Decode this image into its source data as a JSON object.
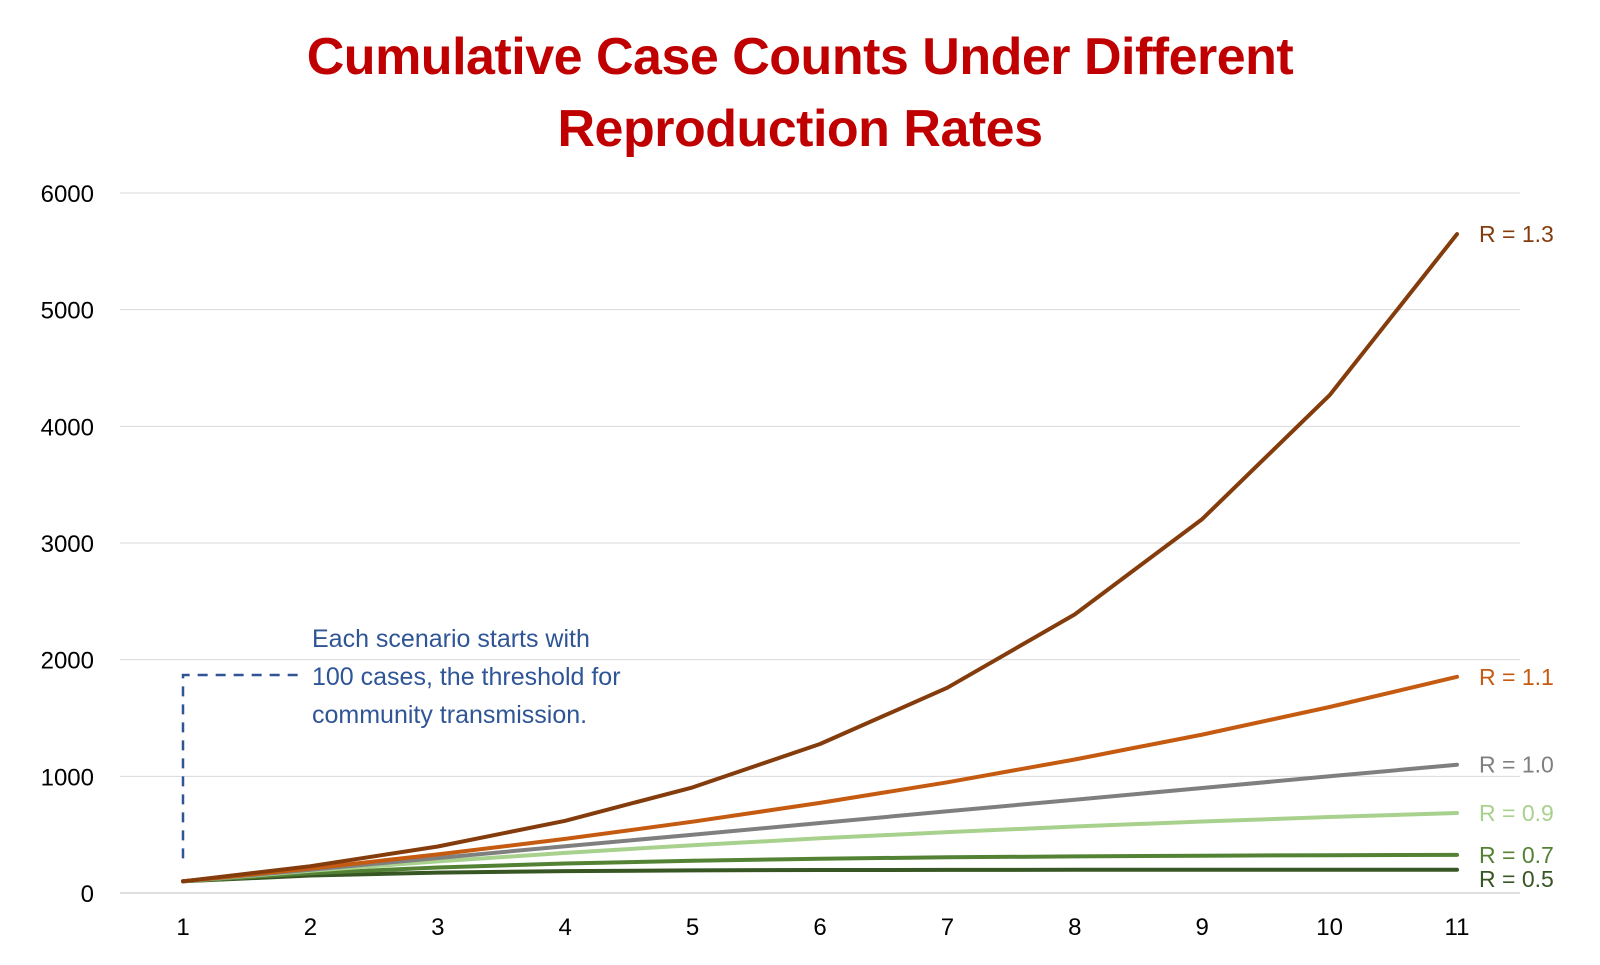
{
  "chart_data": {
    "type": "line",
    "title_lines": [
      "Cumulative Case Counts Under Different",
      "Reproduction Rates"
    ],
    "x": [
      1,
      2,
      3,
      4,
      5,
      6,
      7,
      8,
      9,
      10,
      11
    ],
    "ylim": [
      0,
      6000
    ],
    "yticks": [
      0,
      1000,
      2000,
      3000,
      4000,
      5000,
      6000
    ],
    "grid": true,
    "series": [
      {
        "name": "R = 1.3",
        "color": "#843c0c",
        "values": [
          100,
          230,
          399,
          619,
          905,
          1277,
          1760,
          2388,
          3205,
          4267,
          5648
        ]
      },
      {
        "name": "R = 1.1",
        "color": "#c55a11",
        "values": [
          100,
          210,
          331,
          464,
          611,
          772,
          949,
          1144,
          1358,
          1594,
          1853
        ]
      },
      {
        "name": "R = 1.0",
        "color": "#7f7f7f",
        "values": [
          100,
          200,
          300,
          400,
          500,
          600,
          700,
          800,
          900,
          1000,
          1100
        ]
      },
      {
        "name": "R = 0.9",
        "color": "#a9d18e",
        "values": [
          100,
          190,
          271,
          344,
          410,
          469,
          522,
          570,
          613,
          651,
          686
        ]
      },
      {
        "name": "R = 0.7",
        "color": "#548235",
        "values": [
          100,
          170,
          219,
          253,
          277,
          294,
          306,
          314,
          320,
          324,
          327
        ]
      },
      {
        "name": "R = 0.5",
        "color": "#375623",
        "values": [
          100,
          150,
          175,
          188,
          194,
          197,
          198,
          199,
          200,
          200,
          200
        ]
      }
    ],
    "annotation": {
      "lines": [
        "Each scenario starts with",
        "100 cases, the threshold for",
        "community transmission."
      ],
      "color": "#2f5597"
    }
  }
}
